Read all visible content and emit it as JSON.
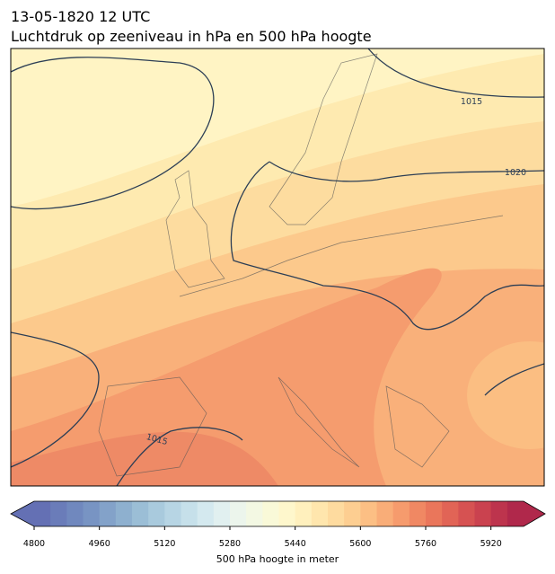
{
  "header": {
    "title": "13-05-1820 12 UTC",
    "subtitle": "Luchtdruk op zeeniveau in hPa en 500 hPa hoogte"
  },
  "map": {
    "isobar_labels": [
      "1015",
      "1020",
      "1015"
    ]
  },
  "colorbar": {
    "label": "500 hPa hoogte in meter",
    "lim": [
      4800,
      6000
    ],
    "ticks": [
      4800,
      4960,
      5120,
      5280,
      5440,
      5600,
      5760,
      5920
    ],
    "colors": [
      "#6470b4",
      "#6a7cb9",
      "#7088be",
      "#7894c3",
      "#83a2c9",
      "#8eb0cf",
      "#9bbed6",
      "#a9cadd",
      "#b7d5e4",
      "#c6e0ea",
      "#d4e9ef",
      "#e1f0f0",
      "#ecf5ec",
      "#f3f8e3",
      "#f9f9d8",
      "#fef7cc",
      "#fff0bd",
      "#ffe6ad",
      "#fedb9f",
      "#fdce91",
      "#fcbf84",
      "#f9ad78",
      "#f69b6d",
      "#f08863",
      "#ea765b",
      "#e16456",
      "#d65252",
      "#ca424f",
      "#bd344d",
      "#b0284b"
    ]
  }
}
